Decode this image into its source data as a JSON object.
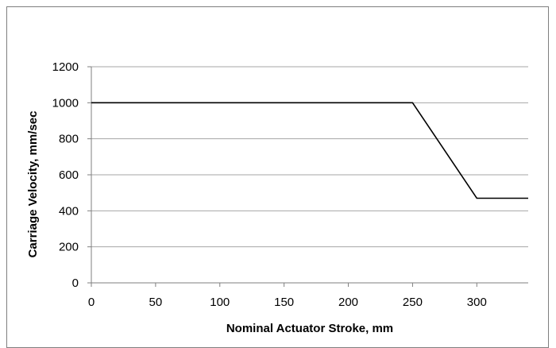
{
  "chart_data": {
    "type": "line",
    "title": "",
    "xlabel": "Nominal Actuator Stroke, mm",
    "ylabel": "Carriage Velocity, mm/sec",
    "xlim": [
      0,
      340
    ],
    "ylim": [
      0,
      1200
    ],
    "x_ticks": [
      0,
      50,
      100,
      150,
      200,
      250,
      300
    ],
    "y_ticks": [
      0,
      200,
      400,
      600,
      800,
      1000,
      1200
    ],
    "grid": "horizontal",
    "legend": "none",
    "series": [
      {
        "x": [
          0,
          250,
          300,
          340
        ],
        "y": [
          1000,
          1000,
          470,
          470
        ]
      }
    ],
    "colors": {
      "line": "#000000",
      "grid": "#a6a6a6",
      "axis": "#7f7f7f"
    }
  }
}
